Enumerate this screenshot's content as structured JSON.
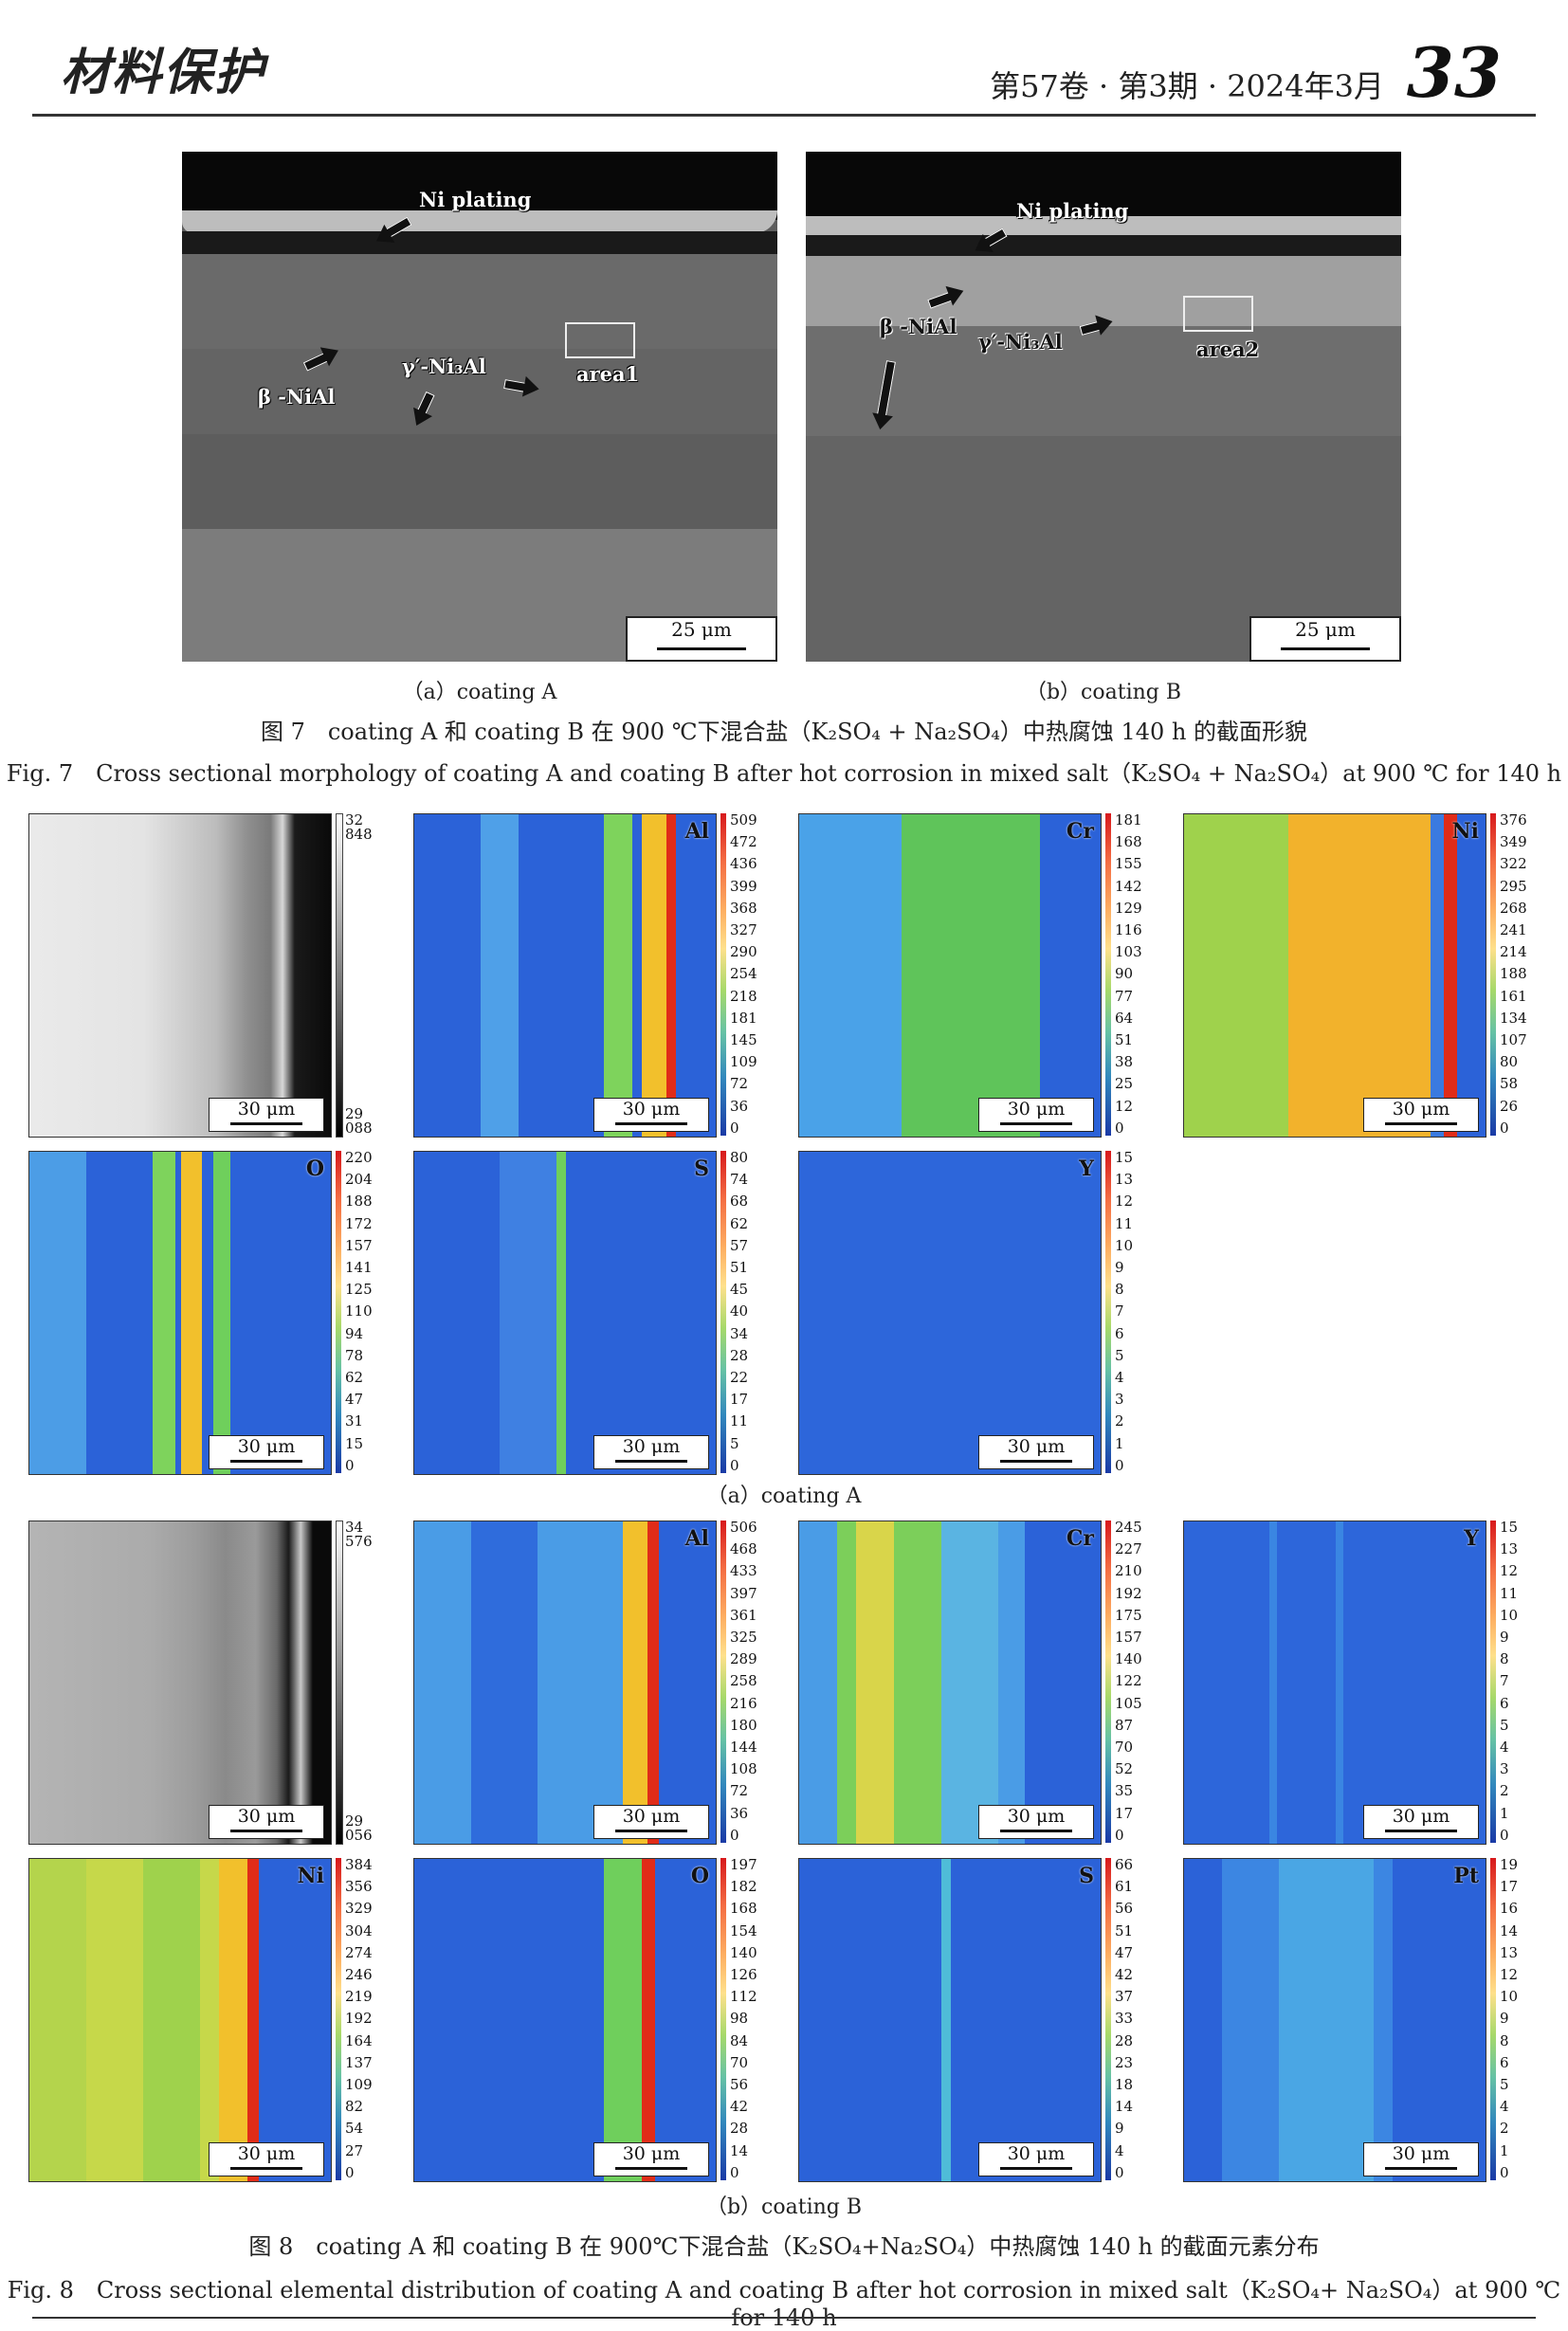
{
  "header": {
    "journal": "材料保护",
    "issue": "第57卷 · 第3期 · 2024年3月",
    "page": "33"
  },
  "fig7": {
    "a": {
      "labels": {
        "ni_plating": "Ni plating",
        "beta": "β -NiAl",
        "gamma": "γ′-Ni₃Al",
        "area": "area1"
      },
      "scale": "25 μm",
      "subcaption": "（a）coating A"
    },
    "b": {
      "labels": {
        "ni_plating": "Ni plating",
        "beta": "β -NiAl",
        "gamma": "γ′-Ni₃Al",
        "area": "area2"
      },
      "scale": "25 μm",
      "subcaption": "（b）coating B"
    },
    "caption_cn": "图 7　coating A 和 coating B 在 900 ℃下混合盐（K₂SO₄ + Na₂SO₄）中热腐蚀 140 h 的截面形貌",
    "caption_en": "Fig. 7　Cross sectional morphology of coating A and coating B after hot corrosion in mixed salt（K₂SO₄ + Na₂SO₄）at 900 ℃ for 140 h"
  },
  "fig8": {
    "scale": "30 μm",
    "a": {
      "subcaption": "（a）coating A",
      "maps": {
        "se": {
          "ticks": [
            "32 848",
            "29 088"
          ]
        },
        "al": {
          "element": "Al",
          "ticks": [
            "509",
            "472",
            "436",
            "399",
            "368",
            "327",
            "290",
            "254",
            "218",
            "181",
            "145",
            "109",
            "72",
            "36",
            "0"
          ]
        },
        "cr": {
          "element": "Cr",
          "ticks": [
            "181",
            "168",
            "155",
            "142",
            "129",
            "116",
            "103",
            "90",
            "77",
            "64",
            "51",
            "38",
            "25",
            "12",
            "0"
          ]
        },
        "ni": {
          "element": "Ni",
          "ticks": [
            "376",
            "349",
            "322",
            "295",
            "268",
            "241",
            "214",
            "188",
            "161",
            "134",
            "107",
            "80",
            "58",
            "26",
            "0"
          ]
        },
        "o": {
          "element": "O",
          "ticks": [
            "220",
            "204",
            "188",
            "172",
            "157",
            "141",
            "125",
            "110",
            "94",
            "78",
            "62",
            "47",
            "31",
            "15",
            "0"
          ]
        },
        "s": {
          "element": "S",
          "ticks": [
            "80",
            "74",
            "68",
            "62",
            "57",
            "51",
            "45",
            "40",
            "34",
            "28",
            "22",
            "17",
            "11",
            "5",
            "0"
          ]
        },
        "y": {
          "element": "Y",
          "ticks": [
            "15",
            "13",
            "12",
            "11",
            "10",
            "9",
            "8",
            "7",
            "6",
            "5",
            "4",
            "3",
            "2",
            "1",
            "0"
          ]
        }
      }
    },
    "b": {
      "subcaption": "（b）coating B",
      "maps": {
        "se": {
          "ticks": [
            "34 576",
            "29 056"
          ]
        },
        "al": {
          "element": "Al",
          "ticks": [
            "506",
            "468",
            "433",
            "397",
            "361",
            "325",
            "289",
            "258",
            "216",
            "180",
            "144",
            "108",
            "72",
            "36",
            "0"
          ]
        },
        "cr": {
          "element": "Cr",
          "ticks": [
            "245",
            "227",
            "210",
            "192",
            "175",
            "157",
            "140",
            "122",
            "105",
            "87",
            "70",
            "52",
            "35",
            "17",
            "0"
          ]
        },
        "y": {
          "element": "Y",
          "ticks": [
            "15",
            "13",
            "12",
            "11",
            "10",
            "9",
            "8",
            "7",
            "6",
            "5",
            "4",
            "3",
            "2",
            "1",
            "0"
          ]
        },
        "ni": {
          "element": "Ni",
          "ticks": [
            "384",
            "356",
            "329",
            "304",
            "274",
            "246",
            "219",
            "192",
            "164",
            "137",
            "109",
            "82",
            "54",
            "27",
            "0"
          ]
        },
        "o": {
          "element": "O",
          "ticks": [
            "197",
            "182",
            "168",
            "154",
            "140",
            "126",
            "112",
            "98",
            "84",
            "70",
            "56",
            "42",
            "28",
            "14",
            "0"
          ]
        },
        "s": {
          "element": "S",
          "ticks": [
            "66",
            "61",
            "56",
            "51",
            "47",
            "42",
            "37",
            "33",
            "28",
            "23",
            "18",
            "14",
            "9",
            "4",
            "0"
          ]
        },
        "pt": {
          "element": "Pt",
          "ticks": [
            "19",
            "17",
            "16",
            "14",
            "13",
            "12",
            "10",
            "9",
            "8",
            "6",
            "5",
            "4",
            "2",
            "1",
            "0"
          ]
        }
      }
    },
    "caption_cn": "图 8　coating A 和 coating B 在 900℃下混合盐（K₂SO₄+Na₂SO₄）中热腐蚀 140 h 的截面元素分布",
    "caption_en": "Fig. 8　Cross sectional elemental distribution of coating A and coating B after hot corrosion in mixed salt（K₂SO₄+ Na₂SO₄）at 900 ℃ for 140 h"
  }
}
